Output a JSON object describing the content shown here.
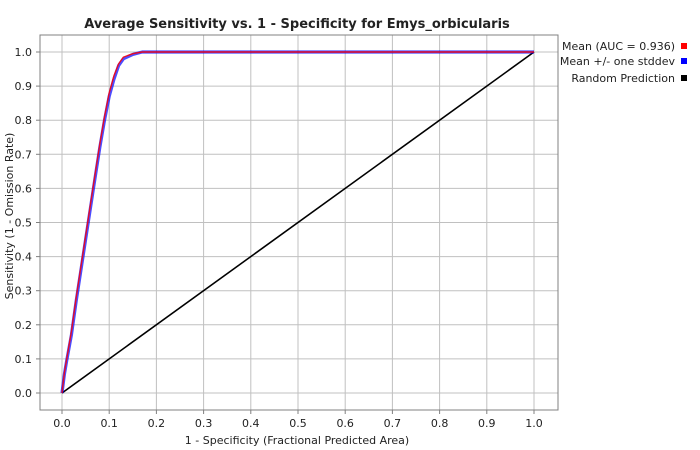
{
  "chart_data": {
    "type": "line",
    "title": "Average Sensitivity vs. 1 - Specificity for Emys_orbicularis",
    "xlabel": "1 - Specificity (Fractional Predicted Area)",
    "ylabel": "Sensitivity (1 - Omission Rate)",
    "xlim": [
      0,
      1
    ],
    "ylim": [
      0,
      1
    ],
    "xticks": [
      "0.0",
      "0.1",
      "0.2",
      "0.3",
      "0.4",
      "0.5",
      "0.6",
      "0.7",
      "0.8",
      "0.9",
      "1.0"
    ],
    "yticks": [
      "0.0",
      "0.1",
      "0.2",
      "0.3",
      "0.4",
      "0.5",
      "0.6",
      "0.7",
      "0.8",
      "0.9",
      "1.0"
    ],
    "grid": true,
    "legend_position": "right",
    "series": [
      {
        "name": "Mean (AUC = 0.936)",
        "color": "#ff0000",
        "x": [
          0.0,
          0.005,
          0.01,
          0.02,
          0.03,
          0.04,
          0.05,
          0.06,
          0.07,
          0.08,
          0.09,
          0.1,
          0.11,
          0.12,
          0.13,
          0.15,
          0.17,
          0.19,
          0.2,
          0.3,
          0.5,
          0.7,
          0.9,
          1.0
        ],
        "y": [
          0.0,
          0.06,
          0.1,
          0.18,
          0.28,
          0.37,
          0.46,
          0.55,
          0.64,
          0.73,
          0.81,
          0.88,
          0.93,
          0.965,
          0.985,
          0.995,
          1.0,
          1.0,
          1.0,
          1.0,
          1.0,
          1.0,
          1.0,
          1.0
        ]
      },
      {
        "name": "Mean +/- one stddev",
        "color": "#0000ff",
        "x": [
          0.0,
          0.005,
          0.01,
          0.02,
          0.03,
          0.04,
          0.05,
          0.06,
          0.07,
          0.08,
          0.09,
          0.1,
          0.11,
          0.12,
          0.13,
          0.15,
          0.17,
          0.19,
          0.2,
          0.3,
          0.5,
          0.7,
          0.9,
          1.0
        ],
        "y": [
          0.0,
          0.055,
          0.095,
          0.17,
          0.27,
          0.36,
          0.45,
          0.54,
          0.63,
          0.72,
          0.8,
          0.87,
          0.92,
          0.96,
          0.98,
          0.993,
          1.0,
          1.0,
          1.0,
          1.0,
          1.0,
          1.0,
          1.0,
          1.0
        ]
      },
      {
        "name": "Random Prediction",
        "color": "#000000",
        "x": [
          0.0,
          1.0
        ],
        "y": [
          0.0,
          1.0
        ]
      }
    ]
  }
}
